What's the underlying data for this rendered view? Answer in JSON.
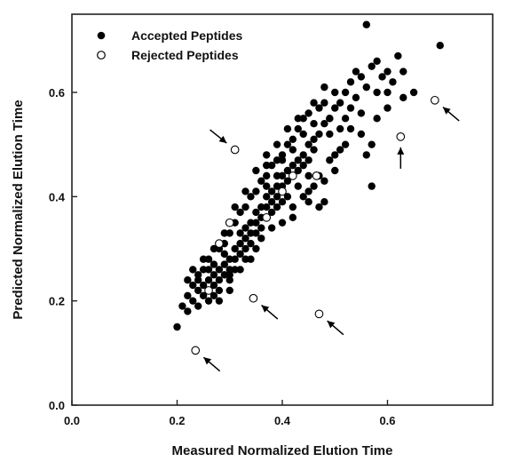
{
  "chart_data": {
    "type": "scatter",
    "xlabel": "Measured Normalized Elution Time",
    "ylabel": "Predicted Normalized Elution Time",
    "xlim": [
      0.0,
      0.8
    ],
    "ylim": [
      0.0,
      0.75
    ],
    "x_ticks": [
      0.0,
      0.2,
      0.4,
      0.6
    ],
    "y_ticks": [
      0.0,
      0.2,
      0.4,
      0.6
    ],
    "x_tick_labels": [
      "0.0",
      "0.2",
      "0.4",
      "0.6"
    ],
    "y_tick_labels": [
      "0.0",
      "0.2",
      "0.4",
      "0.6"
    ],
    "grid": false,
    "legend_position": "top-left",
    "series": [
      {
        "name": "Accepted Peptides",
        "marker": "filled-circle",
        "color": "#000000",
        "points": [
          [
            0.2,
            0.15
          ],
          [
            0.21,
            0.19
          ],
          [
            0.22,
            0.18
          ],
          [
            0.22,
            0.21
          ],
          [
            0.23,
            0.23
          ],
          [
            0.23,
            0.2
          ],
          [
            0.24,
            0.25
          ],
          [
            0.24,
            0.22
          ],
          [
            0.24,
            0.19
          ],
          [
            0.25,
            0.23
          ],
          [
            0.25,
            0.26
          ],
          [
            0.25,
            0.21
          ],
          [
            0.26,
            0.24
          ],
          [
            0.26,
            0.28
          ],
          [
            0.26,
            0.22
          ],
          [
            0.26,
            0.2
          ],
          [
            0.27,
            0.25
          ],
          [
            0.27,
            0.23
          ],
          [
            0.27,
            0.27
          ],
          [
            0.27,
            0.21
          ],
          [
            0.28,
            0.26
          ],
          [
            0.28,
            0.24
          ],
          [
            0.28,
            0.3
          ],
          [
            0.28,
            0.22
          ],
          [
            0.29,
            0.27
          ],
          [
            0.29,
            0.25
          ],
          [
            0.29,
            0.31
          ],
          [
            0.29,
            0.29
          ],
          [
            0.3,
            0.28
          ],
          [
            0.3,
            0.26
          ],
          [
            0.3,
            0.33
          ],
          [
            0.3,
            0.24
          ],
          [
            0.31,
            0.3
          ],
          [
            0.31,
            0.28
          ],
          [
            0.31,
            0.35
          ],
          [
            0.31,
            0.26
          ],
          [
            0.32,
            0.31
          ],
          [
            0.32,
            0.33
          ],
          [
            0.32,
            0.29
          ],
          [
            0.32,
            0.37
          ],
          [
            0.33,
            0.34
          ],
          [
            0.33,
            0.32
          ],
          [
            0.33,
            0.3
          ],
          [
            0.33,
            0.38
          ],
          [
            0.34,
            0.35
          ],
          [
            0.34,
            0.33
          ],
          [
            0.34,
            0.4
          ],
          [
            0.34,
            0.31
          ],
          [
            0.35,
            0.37
          ],
          [
            0.35,
            0.35
          ],
          [
            0.35,
            0.41
          ],
          [
            0.35,
            0.33
          ],
          [
            0.36,
            0.38
          ],
          [
            0.36,
            0.36
          ],
          [
            0.36,
            0.43
          ],
          [
            0.36,
            0.34
          ],
          [
            0.37,
            0.4
          ],
          [
            0.37,
            0.38
          ],
          [
            0.37,
            0.44
          ],
          [
            0.37,
            0.36
          ],
          [
            0.38,
            0.41
          ],
          [
            0.38,
            0.39
          ],
          [
            0.38,
            0.46
          ],
          [
            0.38,
            0.37
          ],
          [
            0.39,
            0.42
          ],
          [
            0.39,
            0.4
          ],
          [
            0.39,
            0.47
          ],
          [
            0.39,
            0.38
          ],
          [
            0.4,
            0.44
          ],
          [
            0.4,
            0.42
          ],
          [
            0.4,
            0.48
          ],
          [
            0.4,
            0.39
          ],
          [
            0.41,
            0.45
          ],
          [
            0.41,
            0.43
          ],
          [
            0.41,
            0.5
          ],
          [
            0.41,
            0.4
          ],
          [
            0.42,
            0.46
          ],
          [
            0.42,
            0.44
          ],
          [
            0.42,
            0.51
          ],
          [
            0.43,
            0.47
          ],
          [
            0.43,
            0.45
          ],
          [
            0.43,
            0.53
          ],
          [
            0.44,
            0.48
          ],
          [
            0.44,
            0.46
          ],
          [
            0.44,
            0.55
          ],
          [
            0.45,
            0.5
          ],
          [
            0.45,
            0.47
          ],
          [
            0.45,
            0.56
          ],
          [
            0.46,
            0.51
          ],
          [
            0.46,
            0.49
          ],
          [
            0.47,
            0.52
          ],
          [
            0.47,
            0.57
          ],
          [
            0.48,
            0.54
          ],
          [
            0.48,
            0.58
          ],
          [
            0.49,
            0.55
          ],
          [
            0.5,
            0.57
          ],
          [
            0.5,
            0.6
          ],
          [
            0.51,
            0.58
          ],
          [
            0.52,
            0.6
          ],
          [
            0.53,
            0.62
          ],
          [
            0.54,
            0.59
          ],
          [
            0.55,
            0.63
          ],
          [
            0.56,
            0.61
          ],
          [
            0.57,
            0.65
          ],
          [
            0.58,
            0.6
          ],
          [
            0.45,
            0.41
          ],
          [
            0.47,
            0.44
          ],
          [
            0.43,
            0.42
          ],
          [
            0.49,
            0.52
          ],
          [
            0.52,
            0.55
          ],
          [
            0.55,
            0.52
          ],
          [
            0.51,
            0.49
          ],
          [
            0.57,
            0.5
          ],
          [
            0.56,
            0.48
          ],
          [
            0.48,
            0.43
          ],
          [
            0.42,
            0.38
          ],
          [
            0.38,
            0.34
          ],
          [
            0.35,
            0.3
          ],
          [
            0.33,
            0.28
          ],
          [
            0.3,
            0.22
          ],
          [
            0.28,
            0.2
          ],
          [
            0.35,
            0.45
          ],
          [
            0.37,
            0.48
          ],
          [
            0.39,
            0.5
          ],
          [
            0.41,
            0.53
          ],
          [
            0.43,
            0.55
          ],
          [
            0.33,
            0.41
          ],
          [
            0.31,
            0.38
          ],
          [
            0.29,
            0.33
          ],
          [
            0.45,
            0.44
          ],
          [
            0.49,
            0.47
          ],
          [
            0.5,
            0.48
          ],
          [
            0.53,
            0.57
          ],
          [
            0.54,
            0.64
          ],
          [
            0.52,
            0.5
          ],
          [
            0.48,
            0.61
          ],
          [
            0.46,
            0.58
          ],
          [
            0.25,
            0.28
          ],
          [
            0.23,
            0.26
          ],
          [
            0.27,
            0.3
          ],
          [
            0.44,
            0.4
          ],
          [
            0.46,
            0.42
          ],
          [
            0.5,
            0.45
          ],
          [
            0.37,
            0.42
          ],
          [
            0.39,
            0.44
          ],
          [
            0.56,
            0.73
          ],
          [
            0.58,
            0.66
          ],
          [
            0.6,
            0.64
          ],
          [
            0.62,
            0.67
          ],
          [
            0.63,
            0.64
          ],
          [
            0.65,
            0.6
          ],
          [
            0.58,
            0.55
          ],
          [
            0.6,
            0.57
          ],
          [
            0.57,
            0.42
          ],
          [
            0.47,
            0.38
          ],
          [
            0.48,
            0.39
          ],
          [
            0.45,
            0.39
          ],
          [
            0.49,
            0.55
          ],
          [
            0.51,
            0.53
          ],
          [
            0.53,
            0.53
          ],
          [
            0.55,
            0.56
          ],
          [
            0.4,
            0.35
          ],
          [
            0.42,
            0.36
          ],
          [
            0.36,
            0.32
          ],
          [
            0.34,
            0.28
          ],
          [
            0.32,
            0.26
          ],
          [
            0.3,
            0.25
          ],
          [
            0.26,
            0.26
          ],
          [
            0.24,
            0.24
          ],
          [
            0.22,
            0.24
          ],
          [
            0.7,
            0.69
          ],
          [
            0.6,
            0.6
          ],
          [
            0.61,
            0.62
          ],
          [
            0.63,
            0.59
          ],
          [
            0.59,
            0.63
          ],
          [
            0.37,
            0.46
          ],
          [
            0.4,
            0.47
          ],
          [
            0.42,
            0.49
          ],
          [
            0.44,
            0.52
          ],
          [
            0.46,
            0.54
          ]
        ]
      },
      {
        "name": "Rejected Peptides",
        "marker": "open-circle",
        "color": "#000000",
        "points": [
          [
            0.235,
            0.105
          ],
          [
            0.345,
            0.205
          ],
          [
            0.31,
            0.49
          ],
          [
            0.47,
            0.175
          ],
          [
            0.625,
            0.515
          ],
          [
            0.69,
            0.585
          ],
          [
            0.465,
            0.44
          ],
          [
            0.42,
            0.44
          ],
          [
            0.4,
            0.41
          ],
          [
            0.3,
            0.35
          ],
          [
            0.28,
            0.31
          ],
          [
            0.26,
            0.22
          ],
          [
            0.37,
            0.36
          ]
        ]
      }
    ],
    "annotations": [
      {
        "type": "arrow",
        "target": [
          0.31,
          0.49
        ],
        "from": "upper-left"
      },
      {
        "type": "arrow",
        "target": [
          0.345,
          0.205
        ],
        "from": "lower-right"
      },
      {
        "type": "arrow",
        "target": [
          0.47,
          0.175
        ],
        "from": "lower-right"
      },
      {
        "type": "arrow",
        "target": [
          0.235,
          0.105
        ],
        "from": "lower-right"
      },
      {
        "type": "arrow",
        "target": [
          0.625,
          0.515
        ],
        "from": "below"
      },
      {
        "type": "arrow",
        "target": [
          0.69,
          0.585
        ],
        "from": "lower-right"
      }
    ]
  }
}
